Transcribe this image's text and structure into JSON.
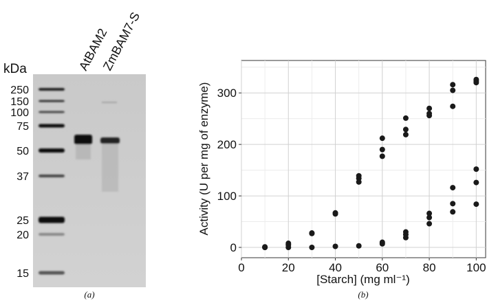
{
  "gel": {
    "unit": "kDa",
    "markers": [
      "250",
      "150",
      "100",
      "75",
      "50",
      "37",
      "25",
      "20",
      "15"
    ],
    "lanes": [
      "AtBAM2",
      "ZmBAM7-S"
    ],
    "caption": "(a)"
  },
  "chart_data": {
    "type": "scatter",
    "caption": "(b)",
    "xlabel": "[Starch] (mg ml⁻¹)",
    "ylabel": "Activity (U per mg of enzyme)",
    "xlim": [
      0,
      104
    ],
    "ylim": [
      -20,
      363
    ],
    "xticks": [
      0,
      20,
      40,
      60,
      80,
      100
    ],
    "yticks": [
      0,
      100,
      200,
      300
    ],
    "xminor": [
      10,
      30,
      50,
      70,
      90
    ],
    "yminor": [
      50,
      150,
      250,
      350
    ],
    "grid": true,
    "series": [
      {
        "color": "#1a1a1a",
        "x": [
          10,
          20,
          20,
          30,
          30,
          40,
          40,
          50,
          50,
          50,
          60,
          60,
          60,
          70,
          70,
          70,
          80,
          80,
          80,
          90,
          90,
          90,
          100,
          100,
          100
        ],
        "values": [
          0,
          5,
          8,
          27,
          28,
          65,
          67,
          127,
          134,
          139,
          177,
          190,
          212,
          219,
          229,
          251,
          256,
          260,
          270,
          274,
          305,
          316,
          320,
          323,
          326
        ]
      },
      {
        "color": "#1a1a1a",
        "x": [
          10,
          10,
          20,
          30,
          40,
          50,
          60,
          60,
          70,
          70,
          70,
          80,
          80,
          80,
          90,
          90,
          90,
          100,
          100,
          100
        ],
        "values": [
          0,
          1,
          0,
          0,
          2,
          3,
          7,
          10,
          19,
          25,
          30,
          46,
          58,
          66,
          69,
          85,
          116,
          84,
          126,
          152
        ]
      }
    ]
  }
}
